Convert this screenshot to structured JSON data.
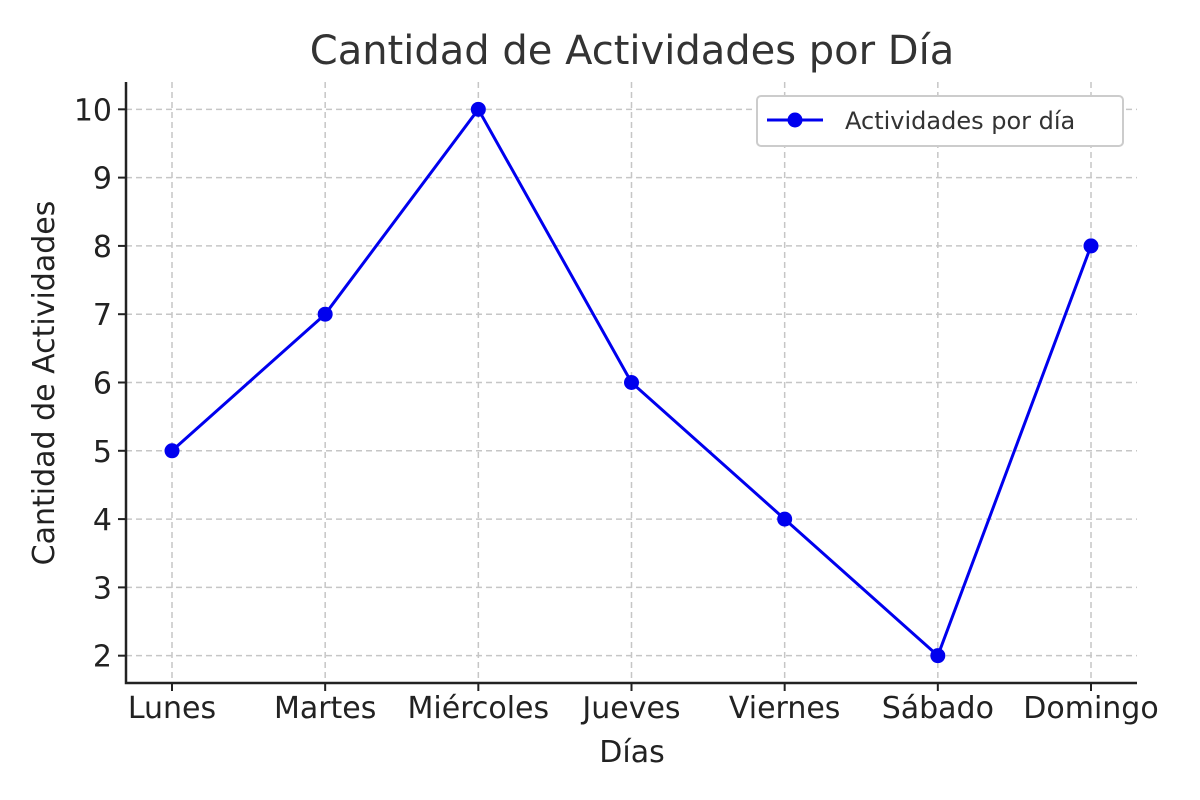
{
  "chart_data": {
    "type": "line",
    "title": "Cantidad de Actividades por Día",
    "xlabel": "Días",
    "ylabel": "Cantidad de Actividades",
    "categories": [
      "Lunes",
      "Martes",
      "Miércoles",
      "Jueves",
      "Viernes",
      "Sábado",
      "Domingo"
    ],
    "series": [
      {
        "name": "Actividades por día",
        "values": [
          5,
          7,
          10,
          6,
          4,
          2,
          8
        ],
        "color": "#0000ee",
        "marker": "circle"
      }
    ],
    "ylim": [
      1.6,
      10.4
    ],
    "yticks": [
      2,
      3,
      4,
      5,
      6,
      7,
      8,
      9,
      10
    ],
    "grid": true,
    "legend_position": "top-right"
  }
}
